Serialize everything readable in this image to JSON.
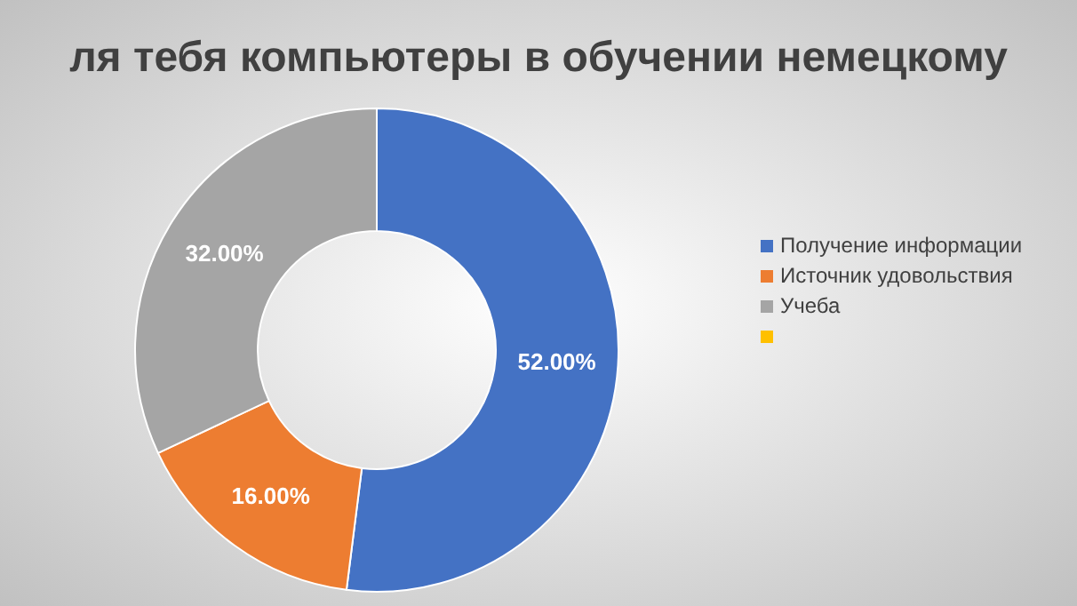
{
  "chart_data": {
    "type": "donut",
    "title": "ля тебя компьютеры в обучении немецкому",
    "categories": [
      "Получение информации",
      "Источник удовольствия",
      "Учеба",
      null
    ],
    "values": [
      52,
      16,
      32,
      0
    ],
    "value_labels": [
      "52.00%",
      "16.00%",
      "32.00%",
      null
    ],
    "colors": [
      "#4472c4",
      "#ed7d31",
      "#a5a5a5",
      "#ffc000"
    ],
    "legend": "right"
  }
}
